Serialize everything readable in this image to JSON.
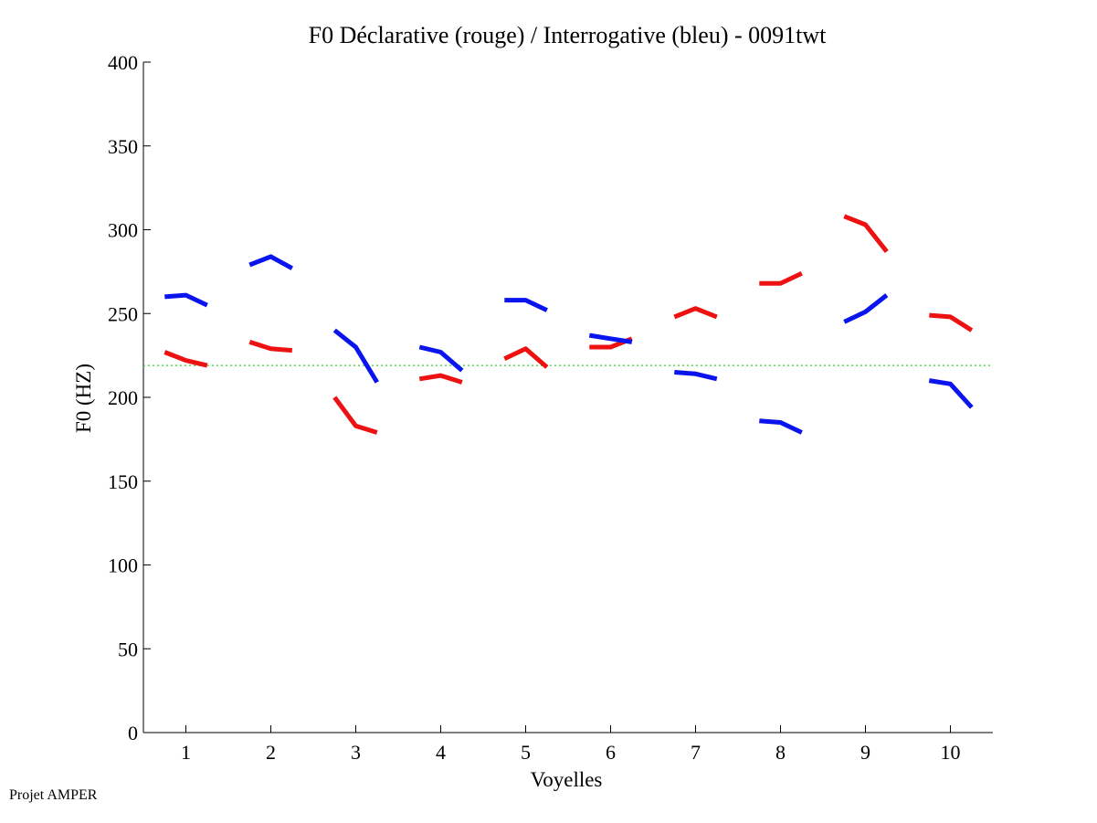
{
  "chart_data": {
    "type": "line",
    "title": "F0 Déclarative (rouge) / Interrogative (bleu) - 0091twt",
    "xlabel": "Voyelles",
    "ylabel": "F0 (HZ)",
    "xlim": [
      0.5,
      10.5
    ],
    "ylim": [
      0,
      400
    ],
    "xticks": [
      1,
      2,
      3,
      4,
      5,
      6,
      7,
      8,
      9,
      10
    ],
    "yticks": [
      0,
      50,
      100,
      150,
      200,
      250,
      300,
      350,
      400
    ],
    "reference_line": {
      "y": 219,
      "color": "#33cc33",
      "style": "dotted"
    },
    "series": [
      {
        "name": "Déclarative (rouge)",
        "color": "#ee1111",
        "segments": [
          {
            "vowel": 1,
            "x": [
              0.75,
              1.0,
              1.25
            ],
            "y": [
              227,
              222,
              219
            ]
          },
          {
            "vowel": 2,
            "x": [
              1.75,
              2.0,
              2.25
            ],
            "y": [
              233,
              229,
              228
            ]
          },
          {
            "vowel": 3,
            "x": [
              2.75,
              3.0,
              3.25
            ],
            "y": [
              200,
              183,
              179
            ]
          },
          {
            "vowel": 4,
            "x": [
              3.75,
              4.0,
              4.25
            ],
            "y": [
              211,
              213,
              209
            ]
          },
          {
            "vowel": 5,
            "x": [
              4.75,
              5.0,
              5.25
            ],
            "y": [
              223,
              229,
              218
            ]
          },
          {
            "vowel": 6,
            "x": [
              5.75,
              6.0,
              6.25
            ],
            "y": [
              230,
              230,
              235
            ]
          },
          {
            "vowel": 7,
            "x": [
              6.75,
              7.0,
              7.25
            ],
            "y": [
              248,
              253,
              248
            ]
          },
          {
            "vowel": 8,
            "x": [
              7.75,
              8.0,
              8.25
            ],
            "y": [
              268,
              268,
              274
            ]
          },
          {
            "vowel": 9,
            "x": [
              8.75,
              9.0,
              9.25
            ],
            "y": [
              308,
              303,
              287
            ]
          },
          {
            "vowel": 10,
            "x": [
              9.75,
              10.0,
              10.25
            ],
            "y": [
              249,
              248,
              240
            ]
          }
        ]
      },
      {
        "name": "Interrogative (bleu)",
        "color": "#0a14ee",
        "segments": [
          {
            "vowel": 1,
            "x": [
              0.75,
              1.0,
              1.25
            ],
            "y": [
              260,
              261,
              255
            ]
          },
          {
            "vowel": 2,
            "x": [
              1.75,
              2.0,
              2.25
            ],
            "y": [
              279,
              284,
              277
            ]
          },
          {
            "vowel": 3,
            "x": [
              2.75,
              3.0,
              3.25
            ],
            "y": [
              240,
              230,
              209
            ]
          },
          {
            "vowel": 4,
            "x": [
              3.75,
              4.0,
              4.25
            ],
            "y": [
              230,
              227,
              216
            ]
          },
          {
            "vowel": 5,
            "x": [
              4.75,
              5.0,
              5.25
            ],
            "y": [
              258,
              258,
              252
            ]
          },
          {
            "vowel": 6,
            "x": [
              5.75,
              6.0,
              6.25
            ],
            "y": [
              237,
              235,
              233
            ]
          },
          {
            "vowel": 7,
            "x": [
              6.75,
              7.0,
              7.25
            ],
            "y": [
              215,
              214,
              211
            ]
          },
          {
            "vowel": 8,
            "x": [
              7.75,
              8.0,
              8.25
            ],
            "y": [
              186,
              185,
              179
            ]
          },
          {
            "vowel": 9,
            "x": [
              8.75,
              9.0,
              9.25
            ],
            "y": [
              245,
              251,
              261
            ]
          },
          {
            "vowel": 10,
            "x": [
              9.75,
              10.0,
              10.25
            ],
            "y": [
              210,
              208,
              194
            ]
          }
        ]
      }
    ]
  },
  "footer": {
    "text": "Projet AMPER"
  }
}
